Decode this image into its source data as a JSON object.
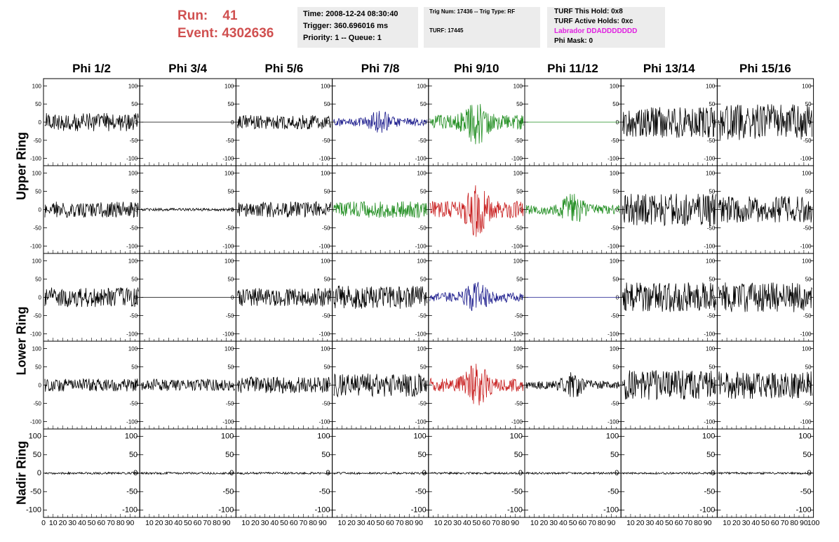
{
  "header": {
    "run_label": "Run:",
    "run_value": "41",
    "event_label": "Event:",
    "event_value": "4302636",
    "time": "Time: 2008-12-24 08:30:40",
    "trigger": "Trigger: 360.696016 ms",
    "priority": "Priority: 1 -- Queue: 1",
    "trig_num": "Trig Num: 17436 -- Trig Type: RF",
    "turf": "TURF: 17445",
    "turf_hold": "TURF This Hold: 0x8",
    "turf_active": "TURF Active Holds: 0xc",
    "labrador": "Labrador DDADDDDDDD",
    "phi_mask": "Phi Mask: 0"
  },
  "columns": [
    "Phi 1/2",
    "Phi 3/4",
    "Phi 5/6",
    "Phi 7/8",
    "Phi 9/10",
    "Phi 11/12",
    "Phi 13/14",
    "Phi 15/16"
  ],
  "rings": [
    "Upper Ring",
    "Lower Ring",
    "Nadir Ring"
  ],
  "colors": {
    "black": "#000000",
    "blue": "#1a1a8c",
    "green": "#1e8c1e",
    "red": "#c81e1e",
    "run_text": "#d05050",
    "labrador": "#e020e0"
  },
  "chart_data": {
    "type": "line",
    "x_ticks": [
      "0",
      "10",
      "20",
      "30",
      "40",
      "50",
      "60",
      "70",
      "80",
      "90",
      "100"
    ],
    "y_ticks": [
      "100",
      "50",
      "0",
      "-50",
      "-100"
    ],
    "xlim": [
      0,
      100
    ],
    "ylim": [
      -120,
      120
    ],
    "grid": false,
    "panels": [
      [
        {
          "color": "black",
          "amp": 28,
          "env": "flat"
        },
        {
          "color": "black",
          "amp": 0,
          "env": "flat"
        },
        {
          "color": "black",
          "amp": 22,
          "env": "flat"
        },
        {
          "color": "blue",
          "amp": 40,
          "env": "burst"
        },
        {
          "color": "green",
          "amp": 75,
          "env": "burst"
        },
        {
          "color": "green",
          "amp": 0,
          "env": "flat"
        },
        {
          "color": "black",
          "amp": 48,
          "env": "flat"
        },
        {
          "color": "black",
          "amp": 55,
          "env": "flat"
        }
      ],
      [
        {
          "color": "black",
          "amp": 24,
          "env": "flat"
        },
        {
          "color": "black",
          "amp": 4,
          "env": "flat"
        },
        {
          "color": "black",
          "amp": 24,
          "env": "flat"
        },
        {
          "color": "green",
          "amp": 25,
          "env": "flat"
        },
        {
          "color": "red",
          "amp": 85,
          "env": "burst"
        },
        {
          "color": "green",
          "amp": 50,
          "env": "burst"
        },
        {
          "color": "black",
          "amp": 50,
          "env": "flat"
        },
        {
          "color": "black",
          "amp": 40,
          "env": "flat"
        }
      ],
      [
        {
          "color": "black",
          "amp": 30,
          "env": "flat"
        },
        {
          "color": "black",
          "amp": 0,
          "env": "flat"
        },
        {
          "color": "black",
          "amp": 28,
          "env": "flat"
        },
        {
          "color": "black",
          "amp": 35,
          "env": "flat"
        },
        {
          "color": "blue",
          "amp": 50,
          "env": "burst"
        },
        {
          "color": "blue",
          "amp": 0,
          "env": "flat"
        },
        {
          "color": "black",
          "amp": 45,
          "env": "flat"
        },
        {
          "color": "black",
          "amp": 45,
          "env": "flat"
        }
      ],
      [
        {
          "color": "black",
          "amp": 20,
          "env": "flat"
        },
        {
          "color": "black",
          "amp": 18,
          "env": "flat"
        },
        {
          "color": "black",
          "amp": 25,
          "env": "flat"
        },
        {
          "color": "black",
          "amp": 35,
          "env": "flat"
        },
        {
          "color": "red",
          "amp": 70,
          "env": "burst"
        },
        {
          "color": "black",
          "amp": 40,
          "env": "burst"
        },
        {
          "color": "black",
          "amp": 45,
          "env": "flat"
        },
        {
          "color": "black",
          "amp": 42,
          "env": "flat"
        }
      ],
      [
        {
          "color": "black",
          "amp": 3,
          "env": "flat"
        },
        {
          "color": "black",
          "amp": 3,
          "env": "flat"
        },
        {
          "color": "black",
          "amp": 3,
          "env": "flat"
        },
        {
          "color": "black",
          "amp": 3,
          "env": "flat"
        },
        {
          "color": "black",
          "amp": 3,
          "env": "flat"
        },
        {
          "color": "black",
          "amp": 3,
          "env": "flat"
        },
        {
          "color": "black",
          "amp": 3,
          "env": "flat"
        },
        {
          "color": "black",
          "amp": 3,
          "env": "flat"
        }
      ]
    ]
  }
}
